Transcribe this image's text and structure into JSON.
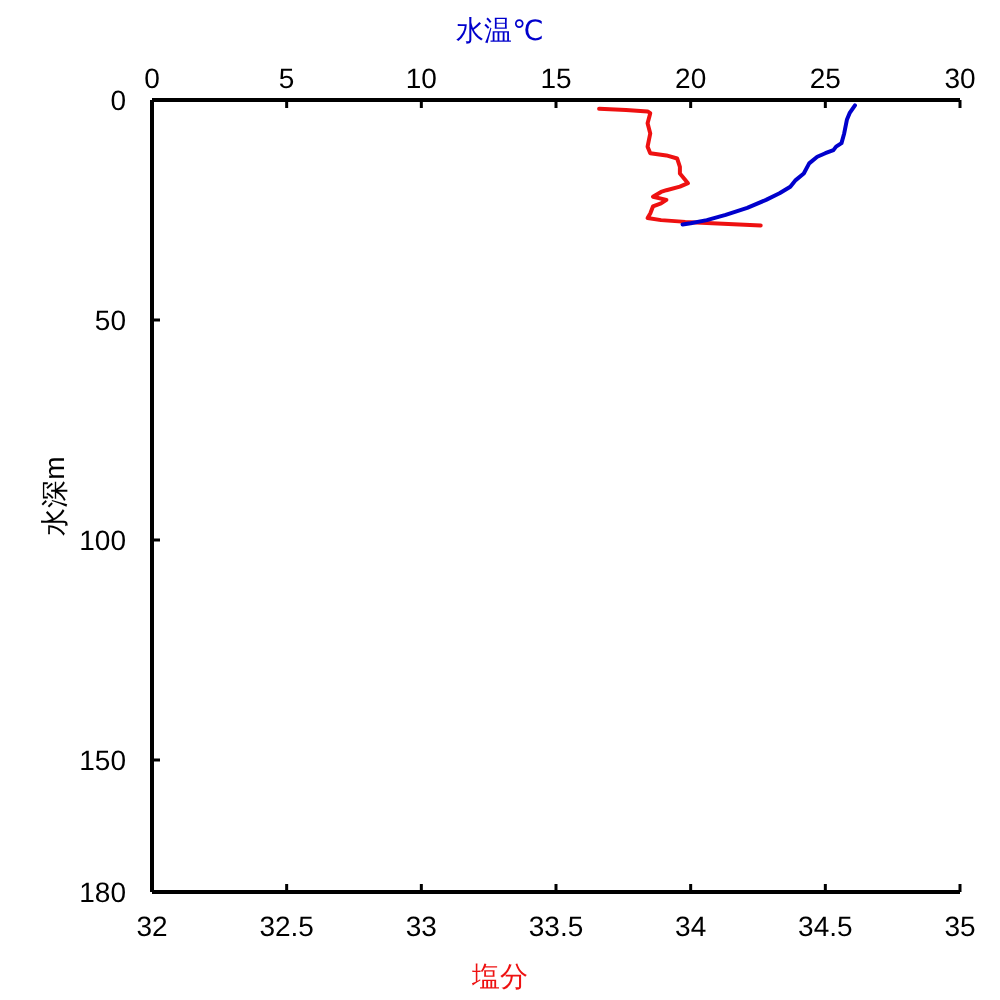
{
  "chart_data": {
    "type": "line",
    "xlabel": "塩分",
    "x2label": "水温℃",
    "ylabel": "水深m",
    "xlim": [
      32,
      35
    ],
    "xticks": [
      32,
      32.5,
      33,
      33.5,
      34,
      34.5,
      35
    ],
    "x2lim": [
      0,
      30
    ],
    "x2ticks": [
      0,
      5,
      10,
      15,
      20,
      25,
      30
    ],
    "ylim": [
      180,
      0
    ],
    "yticks": [
      0,
      50,
      100,
      150,
      180
    ],
    "series": [
      {
        "color": "#ee1111",
        "x": [
          33.66,
          33.76,
          33.84,
          33.85,
          33.84,
          33.85,
          33.84,
          33.85,
          33.91,
          33.95,
          33.96,
          33.96,
          33.99,
          33.96,
          33.91,
          33.89,
          33.86,
          33.91,
          33.89,
          33.86,
          33.85,
          33.84,
          33.89,
          33.98,
          34.08,
          34.18,
          34.26
        ],
        "values": [
          2.0,
          2.3,
          2.6,
          3.0,
          5.3,
          7.6,
          10.6,
          12.1,
          12.6,
          13.3,
          15.2,
          16.7,
          18.9,
          19.7,
          20.5,
          20.9,
          22.0,
          22.7,
          23.5,
          24.2,
          25.8,
          26.8,
          27.3,
          27.7,
          28.0,
          28.3,
          28.5
        ]
      },
      {
        "color": "#0000cc",
        "axis": "x2",
        "x": [
          26.1,
          25.9,
          25.8,
          25.7,
          25.6,
          25.4,
          25.3,
          25.0,
          24.7,
          24.4,
          24.2,
          23.9,
          23.7,
          23.3,
          22.8,
          22.1,
          21.3,
          20.6,
          20.0,
          19.7
        ],
        "values": [
          1.2,
          3.0,
          4.5,
          7.6,
          9.8,
          10.6,
          11.4,
          12.1,
          12.9,
          14.4,
          16.7,
          18.2,
          19.7,
          21.2,
          22.7,
          24.5,
          26.1,
          27.3,
          28.0,
          28.3
        ]
      }
    ]
  }
}
